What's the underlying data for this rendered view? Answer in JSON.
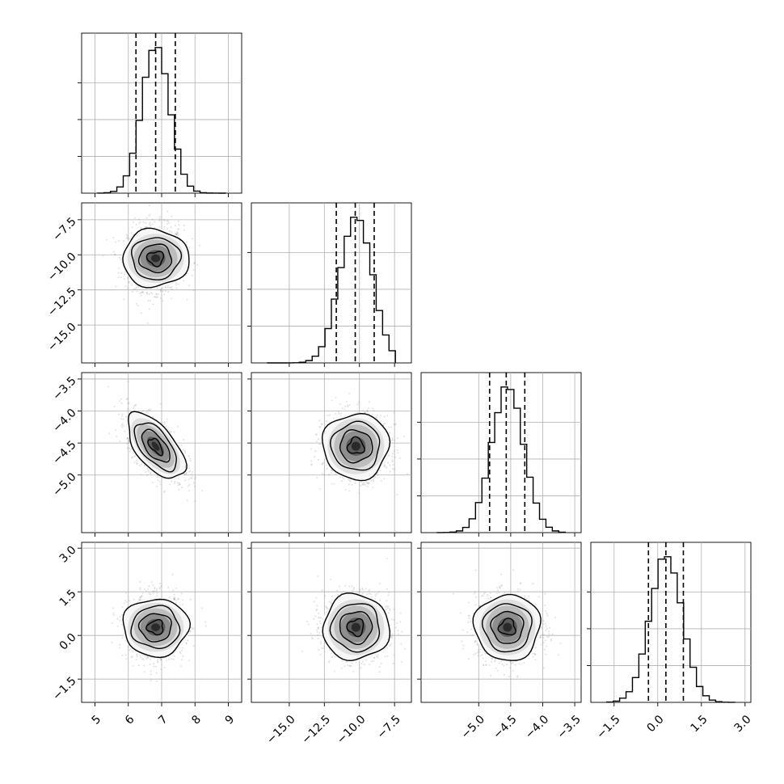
{
  "chart_data": {
    "type": "corner",
    "title": "",
    "parameters": [
      {
        "name": "",
        "range": [
          4.6,
          9.4
        ],
        "ticks": [
          5,
          6,
          7,
          8,
          9
        ],
        "tick_labels": [
          "5",
          "6",
          "7",
          "8",
          "9"
        ],
        "mean": 6.82,
        "sigma": 0.42,
        "quantiles": [
          6.23,
          6.82,
          7.41
        ]
      },
      {
        "name": "",
        "range": [
          -17.7,
          -6.3
        ],
        "ticks": [
          -15.0,
          -12.5,
          -10.0,
          -7.5
        ],
        "tick_labels": [
          "−15.0",
          "−12.5",
          "−10.0",
          "−7.5"
        ],
        "mean": -10.25,
        "sigma": 1.15,
        "quantiles": [
          -11.65,
          -10.3,
          -8.95
        ]
      },
      {
        "name": "",
        "range": [
          -5.9,
          -3.4
        ],
        "ticks": [
          -5.0,
          -4.5,
          -4.0,
          -3.5
        ],
        "tick_labels": [
          "−5.0",
          "−4.5",
          "−4.0",
          "−3.5"
        ],
        "mean": -4.55,
        "sigma": 0.25,
        "quantiles": [
          -4.83,
          -4.57,
          -4.28
        ]
      },
      {
        "name": "",
        "range": [
          -2.3,
          3.2
        ],
        "ticks": [
          -1.5,
          0.0,
          1.5,
          3.0
        ],
        "tick_labels": [
          "−1.5",
          "0.0",
          "1.5",
          "3.0"
        ],
        "mean": 0.28,
        "sigma": 0.55,
        "quantiles": [
          -0.32,
          0.28,
          0.88
        ]
      }
    ],
    "correlations": {
      "1-0": 0.0,
      "2-0": -0.6,
      "2-1": 0.0,
      "3-0": 0.0,
      "3-1": 0.0,
      "3-2": 0.0
    },
    "histogram_bins": 20,
    "contour_levels": [
      "0.5 sigma",
      "1 sigma",
      "1.5 sigma",
      "2 sigma"
    ],
    "grid": true,
    "legend": "none",
    "xlabel": "",
    "ylabel": ""
  }
}
